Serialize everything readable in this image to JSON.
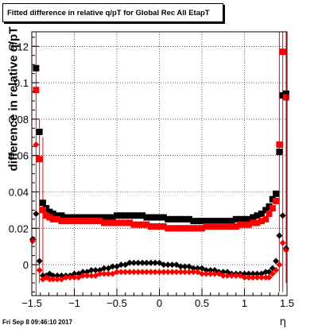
{
  "title": "Fitted difference in relative q/pT for Global Rec All EtapT",
  "ylabel": "difference in relative q/pT",
  "xlabel": "η",
  "datestamp": "Fri Sep  8 09:46:10 2017",
  "colors": {
    "series_a": "#000000",
    "series_b": "#ff0000"
  },
  "chart_data": {
    "type": "scatter",
    "title": "Fitted difference in relative q/pT for Global Rec All EtapT",
    "xlabel": "η",
    "ylabel": "difference in relative q/pT",
    "xlim": [
      -1.5,
      1.5
    ],
    "ylim": [
      -0.017,
      0.128
    ],
    "xticks": [
      -1.5,
      -1,
      -0.5,
      0,
      0.5,
      1,
      1.5
    ],
    "xtick_labels": [
      "−1.5",
      "−1",
      "−0.5",
      "0",
      "0.5",
      "1",
      "1.5"
    ],
    "yticks": [
      0,
      0.02,
      0.04,
      0.06,
      0.08,
      0.1,
      0.12
    ],
    "ytick_labels": [
      "0",
      "0.02",
      "0.04",
      "0.06",
      "0.08",
      "0.1",
      "0.12"
    ],
    "grid": true,
    "series": [
      {
        "color": "#000000",
        "marker": "square",
        "points": [
          [
            -1.45,
            0.108
          ],
          [
            -1.41,
            0.073
          ],
          [
            -1.37,
            0.034
          ],
          [
            -1.33,
            0.031
          ],
          [
            -1.29,
            0.029
          ],
          [
            -1.25,
            0.028
          ],
          [
            -1.2,
            0.027
          ],
          [
            -1.15,
            0.027
          ],
          [
            -1.1,
            0.026
          ],
          [
            -1.05,
            0.026
          ],
          [
            -1.0,
            0.026
          ],
          [
            -0.95,
            0.026
          ],
          [
            -0.9,
            0.026
          ],
          [
            -0.85,
            0.026
          ],
          [
            -0.8,
            0.026
          ],
          [
            -0.75,
            0.026
          ],
          [
            -0.7,
            0.026
          ],
          [
            -0.65,
            0.026
          ],
          [
            -0.6,
            0.026
          ],
          [
            -0.55,
            0.026
          ],
          [
            -0.5,
            0.027
          ],
          [
            -0.45,
            0.027
          ],
          [
            -0.4,
            0.027
          ],
          [
            -0.35,
            0.027
          ],
          [
            -0.3,
            0.027
          ],
          [
            -0.25,
            0.027
          ],
          [
            -0.2,
            0.027
          ],
          [
            -0.15,
            0.026
          ],
          [
            -0.1,
            0.026
          ],
          [
            -0.05,
            0.026
          ],
          [
            0.0,
            0.026
          ],
          [
            0.05,
            0.026
          ],
          [
            0.1,
            0.025
          ],
          [
            0.15,
            0.025
          ],
          [
            0.2,
            0.025
          ],
          [
            0.25,
            0.025
          ],
          [
            0.3,
            0.025
          ],
          [
            0.35,
            0.025
          ],
          [
            0.4,
            0.024
          ],
          [
            0.45,
            0.024
          ],
          [
            0.5,
            0.024
          ],
          [
            0.55,
            0.024
          ],
          [
            0.6,
            0.024
          ],
          [
            0.65,
            0.024
          ],
          [
            0.7,
            0.024
          ],
          [
            0.75,
            0.024
          ],
          [
            0.8,
            0.024
          ],
          [
            0.85,
            0.024
          ],
          [
            0.9,
            0.025
          ],
          [
            0.95,
            0.025
          ],
          [
            1.0,
            0.025
          ],
          [
            1.05,
            0.025
          ],
          [
            1.1,
            0.026
          ],
          [
            1.15,
            0.027
          ],
          [
            1.2,
            0.028
          ],
          [
            1.25,
            0.03
          ],
          [
            1.29,
            0.032
          ],
          [
            1.33,
            0.036
          ],
          [
            1.37,
            0.039
          ],
          [
            1.41,
            0.062
          ],
          [
            1.45,
            0.093
          ],
          [
            1.49,
            0.094
          ]
        ]
      },
      {
        "color": "#ff0000",
        "marker": "square",
        "points": [
          [
            -1.45,
            0.096
          ],
          [
            -1.41,
            0.058
          ],
          [
            -1.37,
            0.03
          ],
          [
            -1.33,
            0.027
          ],
          [
            -1.29,
            0.026
          ],
          [
            -1.25,
            0.025
          ],
          [
            -1.2,
            0.025
          ],
          [
            -1.15,
            0.024
          ],
          [
            -1.1,
            0.024
          ],
          [
            -1.05,
            0.024
          ],
          [
            -1.0,
            0.024
          ],
          [
            -0.95,
            0.024
          ],
          [
            -0.9,
            0.024
          ],
          [
            -0.85,
            0.024
          ],
          [
            -0.8,
            0.024
          ],
          [
            -0.75,
            0.024
          ],
          [
            -0.7,
            0.024
          ],
          [
            -0.65,
            0.023
          ],
          [
            -0.6,
            0.023
          ],
          [
            -0.55,
            0.023
          ],
          [
            -0.5,
            0.023
          ],
          [
            -0.45,
            0.023
          ],
          [
            -0.4,
            0.023
          ],
          [
            -0.35,
            0.023
          ],
          [
            -0.3,
            0.022
          ],
          [
            -0.25,
            0.022
          ],
          [
            -0.2,
            0.022
          ],
          [
            -0.15,
            0.022
          ],
          [
            -0.1,
            0.021
          ],
          [
            -0.05,
            0.021
          ],
          [
            0.0,
            0.021
          ],
          [
            0.05,
            0.021
          ],
          [
            0.1,
            0.02
          ],
          [
            0.15,
            0.02
          ],
          [
            0.2,
            0.02
          ],
          [
            0.25,
            0.02
          ],
          [
            0.3,
            0.02
          ],
          [
            0.35,
            0.02
          ],
          [
            0.4,
            0.02
          ],
          [
            0.45,
            0.02
          ],
          [
            0.5,
            0.02
          ],
          [
            0.55,
            0.021
          ],
          [
            0.6,
            0.021
          ],
          [
            0.65,
            0.021
          ],
          [
            0.7,
            0.021
          ],
          [
            0.75,
            0.021
          ],
          [
            0.8,
            0.021
          ],
          [
            0.85,
            0.021
          ],
          [
            0.9,
            0.021
          ],
          [
            0.95,
            0.022
          ],
          [
            1.0,
            0.022
          ],
          [
            1.05,
            0.022
          ],
          [
            1.1,
            0.023
          ],
          [
            1.15,
            0.023
          ],
          [
            1.2,
            0.024
          ],
          [
            1.25,
            0.025
          ],
          [
            1.29,
            0.028
          ],
          [
            1.33,
            0.031
          ],
          [
            1.37,
            0.035
          ],
          [
            1.41,
            0.066
          ],
          [
            1.45,
            0.117
          ],
          [
            1.49,
            0.092
          ]
        ]
      },
      {
        "color": "#000000",
        "marker": "diamond",
        "points": [
          [
            -1.49,
            0.014
          ],
          [
            -1.45,
            0.028
          ],
          [
            -1.41,
            0.002
          ],
          [
            -1.37,
            -0.006
          ],
          [
            -1.33,
            -0.006
          ],
          [
            -1.29,
            -0.005
          ],
          [
            -1.25,
            -0.006
          ],
          [
            -1.2,
            -0.006
          ],
          [
            -1.15,
            -0.006
          ],
          [
            -1.1,
            -0.006
          ],
          [
            -1.05,
            -0.006
          ],
          [
            -1.0,
            -0.005
          ],
          [
            -0.95,
            -0.005
          ],
          [
            -0.9,
            -0.004
          ],
          [
            -0.85,
            -0.004
          ],
          [
            -0.8,
            -0.003
          ],
          [
            -0.75,
            -0.003
          ],
          [
            -0.7,
            -0.003
          ],
          [
            -0.65,
            -0.002
          ],
          [
            -0.6,
            -0.002
          ],
          [
            -0.55,
            -0.001
          ],
          [
            -0.5,
            -0.001
          ],
          [
            -0.45,
            0.0
          ],
          [
            -0.4,
            0.0
          ],
          [
            -0.35,
            0.001
          ],
          [
            -0.3,
            0.001
          ],
          [
            -0.25,
            0.001
          ],
          [
            -0.2,
            0.001
          ],
          [
            -0.15,
            0.001
          ],
          [
            -0.1,
            0.001
          ],
          [
            -0.05,
            0.001
          ],
          [
            0.0,
            0.001
          ],
          [
            0.05,
            0.0
          ],
          [
            0.1,
            0.0
          ],
          [
            0.15,
            0.0
          ],
          [
            0.2,
            0.0
          ],
          [
            0.25,
            -0.001
          ],
          [
            0.3,
            -0.001
          ],
          [
            0.35,
            -0.001
          ],
          [
            0.4,
            -0.002
          ],
          [
            0.45,
            -0.002
          ],
          [
            0.5,
            -0.002
          ],
          [
            0.55,
            -0.003
          ],
          [
            0.6,
            -0.003
          ],
          [
            0.65,
            -0.003
          ],
          [
            0.7,
            -0.004
          ],
          [
            0.75,
            -0.004
          ],
          [
            0.8,
            -0.004
          ],
          [
            0.85,
            -0.005
          ],
          [
            0.9,
            -0.005
          ],
          [
            0.95,
            -0.005
          ],
          [
            1.0,
            -0.005
          ],
          [
            1.05,
            -0.005
          ],
          [
            1.1,
            -0.005
          ],
          [
            1.15,
            -0.005
          ],
          [
            1.2,
            -0.005
          ],
          [
            1.25,
            -0.004
          ],
          [
            1.29,
            -0.004
          ],
          [
            1.33,
            -0.002
          ],
          [
            1.37,
            0.002
          ],
          [
            1.41,
            0.016
          ],
          [
            1.45,
            0.027
          ],
          [
            1.49,
            0.009
          ]
        ]
      },
      {
        "color": "#ff0000",
        "marker": "diamond",
        "points": [
          [
            -1.49,
            0.013
          ],
          [
            -1.45,
            0.066
          ],
          [
            -1.41,
            -0.003
          ],
          [
            -1.37,
            -0.008
          ],
          [
            -1.33,
            -0.007
          ],
          [
            -1.29,
            -0.008
          ],
          [
            -1.25,
            -0.008
          ],
          [
            -1.2,
            -0.008
          ],
          [
            -1.15,
            -0.008
          ],
          [
            -1.1,
            -0.007
          ],
          [
            -1.05,
            -0.007
          ],
          [
            -1.0,
            -0.007
          ],
          [
            -0.95,
            -0.007
          ],
          [
            -0.9,
            -0.006
          ],
          [
            -0.85,
            -0.006
          ],
          [
            -0.8,
            -0.006
          ],
          [
            -0.75,
            -0.006
          ],
          [
            -0.7,
            -0.005
          ],
          [
            -0.65,
            -0.005
          ],
          [
            -0.6,
            -0.005
          ],
          [
            -0.55,
            -0.005
          ],
          [
            -0.5,
            -0.004
          ],
          [
            -0.45,
            -0.004
          ],
          [
            -0.4,
            -0.004
          ],
          [
            -0.35,
            -0.004
          ],
          [
            -0.3,
            -0.004
          ],
          [
            -0.25,
            -0.004
          ],
          [
            -0.2,
            -0.004
          ],
          [
            -0.15,
            -0.004
          ],
          [
            -0.1,
            -0.004
          ],
          [
            -0.05,
            -0.004
          ],
          [
            0.0,
            -0.004
          ],
          [
            0.05,
            -0.004
          ],
          [
            0.1,
            -0.004
          ],
          [
            0.15,
            -0.004
          ],
          [
            0.2,
            -0.004
          ],
          [
            0.25,
            -0.004
          ],
          [
            0.3,
            -0.004
          ],
          [
            0.35,
            -0.004
          ],
          [
            0.4,
            -0.004
          ],
          [
            0.45,
            -0.004
          ],
          [
            0.5,
            -0.005
          ],
          [
            0.55,
            -0.005
          ],
          [
            0.6,
            -0.005
          ],
          [
            0.65,
            -0.005
          ],
          [
            0.7,
            -0.005
          ],
          [
            0.75,
            -0.006
          ],
          [
            0.8,
            -0.006
          ],
          [
            0.85,
            -0.006
          ],
          [
            0.9,
            -0.006
          ],
          [
            0.95,
            -0.006
          ],
          [
            1.0,
            -0.007
          ],
          [
            1.05,
            -0.007
          ],
          [
            1.1,
            -0.007
          ],
          [
            1.15,
            -0.007
          ],
          [
            1.2,
            -0.007
          ],
          [
            1.25,
            -0.007
          ],
          [
            1.29,
            -0.007
          ],
          [
            1.33,
            -0.005
          ],
          [
            1.37,
            -0.003
          ],
          [
            1.41,
            0.0
          ],
          [
            1.45,
            0.012
          ],
          [
            1.49,
            0.008
          ]
        ]
      }
    ],
    "edge_error_bars": [
      {
        "x": -1.45,
        "low": -0.017,
        "high": 0.128
      },
      {
        "x": -1.41,
        "low": -0.01,
        "high": 0.08
      },
      {
        "x": -1.37,
        "low": -0.005,
        "high": 0.07
      },
      {
        "x": 1.41,
        "low": -0.015,
        "high": 0.128
      },
      {
        "x": 1.45,
        "low": -0.015,
        "high": 0.128
      },
      {
        "x": 1.49,
        "low": -0.01,
        "high": 0.128
      }
    ]
  }
}
